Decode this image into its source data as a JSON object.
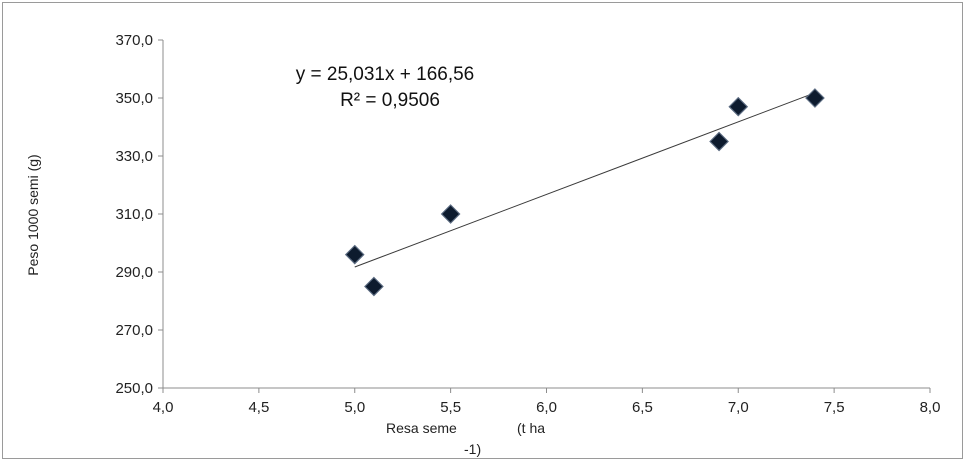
{
  "chart_data": {
    "type": "scatter",
    "title": "",
    "xlabel_parts": [
      "Resa seme",
      "(t ha",
      "-1)"
    ],
    "ylabel": "Peso 1000 semi (g)",
    "xlim": [
      4.0,
      8.0
    ],
    "ylim": [
      250.0,
      370.0
    ],
    "x_ticks": [
      "4,0",
      "4,5",
      "5,0",
      "5,5",
      "6,0",
      "6,5",
      "7,0",
      "7,5",
      "8,0"
    ],
    "y_ticks": [
      "250,0",
      "270,0",
      "290,0",
      "310,0",
      "330,0",
      "350,0",
      "370,0"
    ],
    "grid": false,
    "legend": "none",
    "marker": "diamond",
    "marker_color": "#0d1b2e",
    "series": [
      {
        "x": [
          5.0,
          5.1,
          5.5,
          6.9,
          7.0,
          7.4
        ],
        "y": [
          296.0,
          285.0,
          310.0,
          335.0,
          347.0,
          350.0
        ]
      }
    ],
    "trendline": {
      "type": "linear",
      "slope": 25.031,
      "intercept": 166.56,
      "x_range": [
        5.0,
        7.4
      ],
      "equation": "y = 25,031x + 166,56",
      "r_squared": "R² = 0,9506"
    }
  }
}
